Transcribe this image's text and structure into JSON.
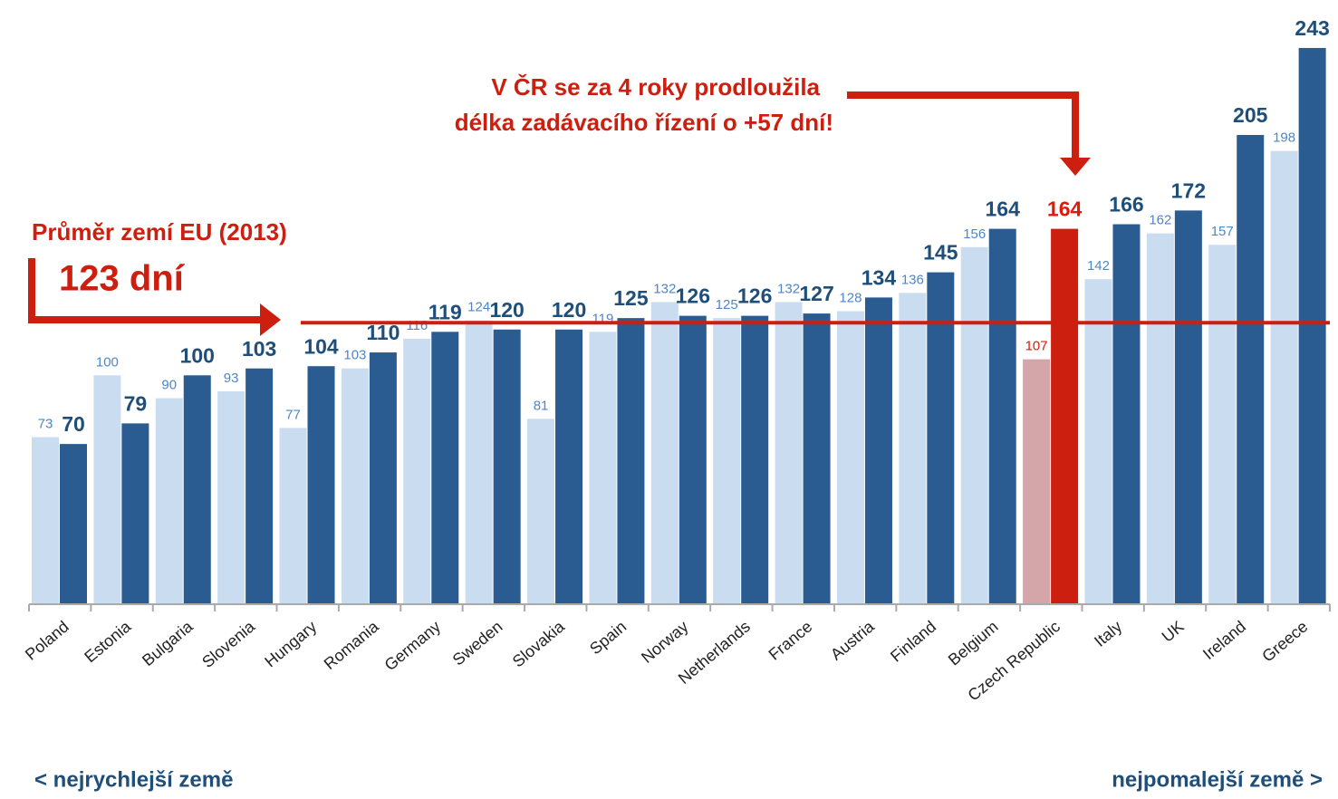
{
  "chart_data": {
    "type": "bar",
    "categories": [
      "Poland",
      "Estonia",
      "Bulgaria",
      "Slovenia",
      "Hungary",
      "Romania",
      "Germany",
      "Sweden",
      "Slovakia",
      "Spain",
      "Norway",
      "Netherlands",
      "France",
      "Austria",
      "Finland",
      "Belgium",
      "Czech Republic",
      "Italy",
      "UK",
      "Ireland",
      "Greece"
    ],
    "series": [
      {
        "color": "#c9dcf0",
        "label_color": "#4f86c6",
        "values": [
          73,
          100,
          90,
          93,
          77,
          103,
          116,
          124,
          81,
          119,
          132,
          125,
          132,
          128,
          136,
          156,
          107,
          142,
          162,
          157,
          198
        ]
      },
      {
        "color": "#2a5b91",
        "label_color": "#1f4e79",
        "values": [
          70,
          79,
          100,
          103,
          104,
          110,
          119,
          120,
          120,
          125,
          126,
          126,
          127,
          134,
          145,
          164,
          164,
          166,
          172,
          205,
          243
        ]
      }
    ],
    "highlight": {
      "category": "Czech Republic",
      "colors": [
        "#d4a5a9",
        "#cc1f10"
      ],
      "label_color": "#e0190b"
    },
    "ylim": [
      0,
      260
    ],
    "reference_line": {
      "value": 123,
      "label": "123 dní",
      "name": "Průměr zemí EU (2013)",
      "color": "#cc1f10"
    },
    "annotation": [
      "V ČR se za 4 roky prodloužila",
      "délka zadávacího řízení o +57 dní!"
    ],
    "footer_left": "< nejrychlejší země",
    "footer_right": "nejpomalejší země >"
  }
}
